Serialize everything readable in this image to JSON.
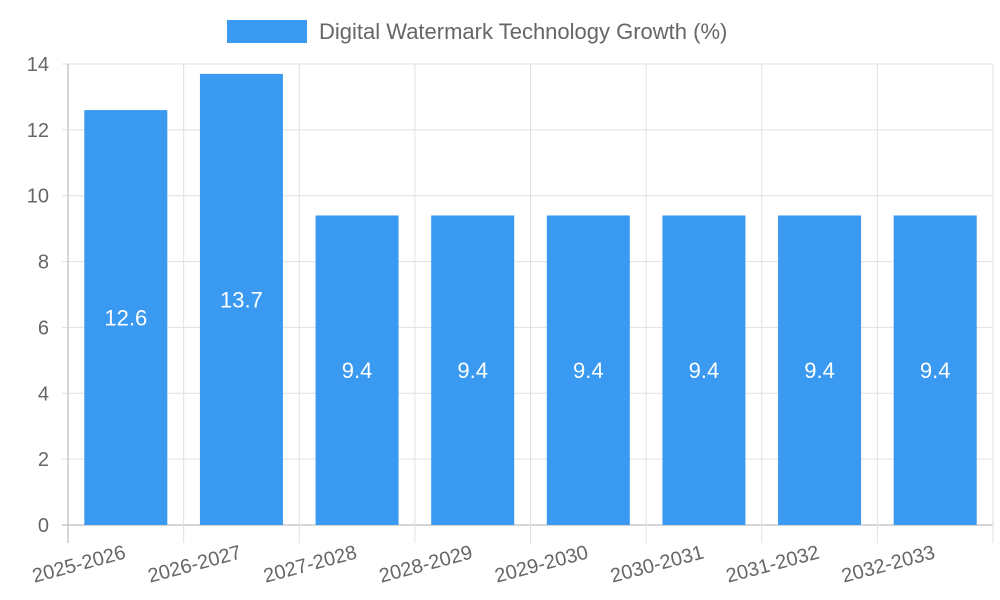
{
  "chart_data": {
    "type": "bar",
    "categories": [
      "2025-2026",
      "2026-2027",
      "2027-2028",
      "2028-2029",
      "2029-2030",
      "2030-2031",
      "2031-2032",
      "2032-2033"
    ],
    "series": [
      {
        "name": "Digital Watermark Technology Growth (%)",
        "values": [
          12.6,
          13.7,
          9.4,
          9.4,
          9.4,
          9.4,
          9.4,
          9.4
        ],
        "color": "#3a99f0"
      }
    ],
    "title": "",
    "xlabel": "",
    "ylabel": "",
    "ylim": [
      0,
      14
    ],
    "yticks": [
      0,
      2,
      4,
      6,
      8,
      10,
      12,
      14
    ],
    "grid": true,
    "legend_position": "top-center",
    "data_labels": true
  },
  "colors": {
    "bar": "#3a99f0",
    "grid": "#e0e0e0",
    "axis": "#c8c8c8",
    "text": "#666666",
    "data_label": "#ffffff"
  }
}
